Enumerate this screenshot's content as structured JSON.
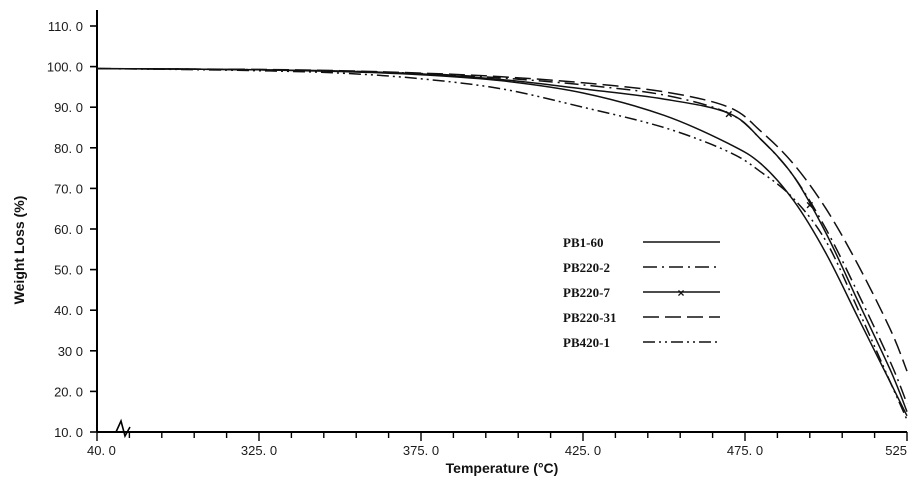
{
  "chart_data": {
    "type": "line",
    "title": "",
    "xlabel": "Temperature (°C)",
    "ylabel": "Weight Loss (%)",
    "xlim": [
      275,
      525
    ],
    "ylim": [
      10,
      110
    ],
    "x_axis_break": true,
    "x_ticks": [
      {
        "value": 275,
        "label": "40. 0"
      },
      {
        "value": 325,
        "label": "325. 0"
      },
      {
        "value": 375,
        "label": "375. 0"
      },
      {
        "value": 425,
        "label": "425. 0"
      },
      {
        "value": 475,
        "label": "475. 0"
      },
      {
        "value": 525,
        "label": "525"
      }
    ],
    "y_ticks": [
      {
        "value": 10,
        "label": "10. 0"
      },
      {
        "value": 20,
        "label": "20. 0"
      },
      {
        "value": 30,
        "label": "30 0"
      },
      {
        "value": 40,
        "label": "40. 0"
      },
      {
        "value": 50,
        "label": "50. 0"
      },
      {
        "value": 60,
        "label": "60. 0"
      },
      {
        "value": 70,
        "label": "70. 0"
      },
      {
        "value": 80,
        "label": "80. 0"
      },
      {
        "value": 90,
        "label": "90. 0"
      },
      {
        "value": 100,
        "label": "100. 0"
      },
      {
        "value": 110,
        "label": "110. 0"
      }
    ],
    "grid": false,
    "legend_position": "lower-right",
    "series": [
      {
        "name": "PB1-60",
        "dash": "solid",
        "marker": "",
        "x": [
          275,
          300,
          325,
          350,
          375,
          400,
          425,
          450,
          470,
          480,
          490,
          500,
          510,
          520,
          525
        ],
        "y": [
          99.5,
          99.4,
          99.2,
          98.8,
          98.0,
          96.5,
          93.5,
          88.0,
          81.0,
          76.0,
          67.0,
          54.0,
          38.0,
          22.0,
          14.0
        ]
      },
      {
        "name": "PB220-2",
        "dash": "dash-dot",
        "marker": "",
        "x": [
          275,
          300,
          325,
          350,
          375,
          400,
          425,
          450,
          470,
          480,
          490,
          500,
          510,
          520,
          525
        ],
        "y": [
          99.5,
          99.4,
          99.2,
          98.9,
          98.3,
          97.2,
          95.5,
          93.0,
          88.5,
          82.0,
          73.0,
          60.0,
          44.0,
          27.0,
          17.0
        ]
      },
      {
        "name": "PB220-7",
        "dash": "solid",
        "marker": "x",
        "x": [
          275,
          300,
          325,
          350,
          375,
          400,
          425,
          450,
          470,
          480,
          490,
          500,
          510,
          520,
          525
        ],
        "y": [
          99.5,
          99.4,
          99.2,
          98.9,
          98.2,
          96.8,
          94.5,
          92.0,
          88.5,
          82.0,
          73.0,
          59.0,
          42.0,
          25.0,
          15.0
        ]
      },
      {
        "name": "PB220-31",
        "dash": "long-dash",
        "marker": "",
        "x": [
          275,
          300,
          325,
          350,
          375,
          400,
          425,
          450,
          470,
          480,
          490,
          500,
          510,
          520,
          525
        ],
        "y": [
          99.5,
          99.4,
          99.3,
          99.0,
          98.4,
          97.5,
          96.0,
          93.8,
          90.0,
          84.0,
          76.0,
          65.0,
          51.0,
          35.0,
          25.0
        ]
      },
      {
        "name": "PB420-1",
        "dash": "dash-dot-dot",
        "marker": "",
        "x": [
          275,
          300,
          325,
          350,
          375,
          400,
          425,
          450,
          470,
          480,
          490,
          500,
          510,
          520,
          525
        ],
        "y": [
          99.5,
          99.3,
          99.0,
          98.4,
          97.0,
          94.5,
          90.0,
          85.0,
          79.0,
          74.0,
          67.5,
          57.0,
          40.0,
          22.0,
          13.0
        ]
      }
    ]
  }
}
